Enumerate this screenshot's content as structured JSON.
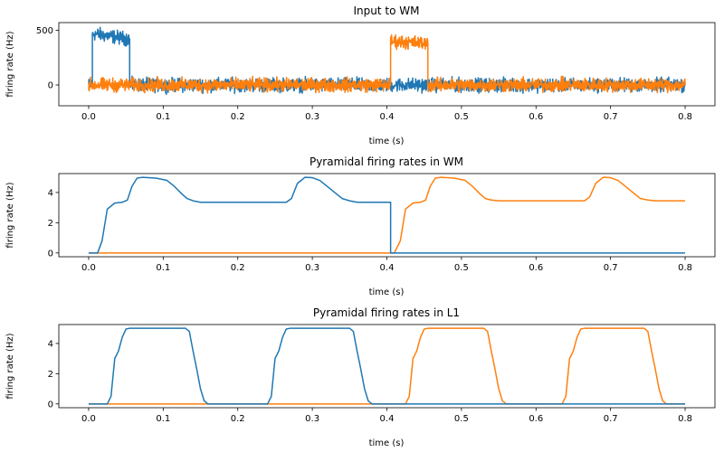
{
  "colors": {
    "series_1": "#1f77b4",
    "series_2": "#ff7f0e"
  },
  "chart_data": [
    {
      "type": "line",
      "title": "Input to WM",
      "xlabel": "time (s)",
      "ylabel": "firing rate (Hz)",
      "xlim": [
        -0.04,
        0.84
      ],
      "ylim": [
        -190,
        570
      ],
      "xticks": [
        0.0,
        0.1,
        0.2,
        0.3,
        0.4,
        0.5,
        0.6,
        0.7,
        0.8
      ],
      "xtick_labels": [
        "0.0",
        "0.1",
        "0.2",
        "0.3",
        "0.4",
        "0.5",
        "0.6",
        "0.7",
        "0.8"
      ],
      "yticks": [
        0,
        500
      ],
      "ytick_labels": [
        "0",
        "500"
      ],
      "noise_amplitude": 50,
      "series": [
        {
          "color_key": "series_1",
          "z": 1,
          "x": [
            0.0,
            0.005,
            0.005,
            0.055,
            0.055,
            0.405,
            0.405,
            0.455,
            0.455,
            0.8
          ],
          "y": [
            0,
            0,
            470,
            420,
            0,
            0,
            0,
            0,
            0,
            0
          ]
        },
        {
          "color_key": "series_2",
          "z": 2,
          "x": [
            0.0,
            0.405,
            0.405,
            0.455,
            0.455,
            0.8
          ],
          "y": [
            0,
            0,
            400,
            380,
            0,
            0
          ]
        }
      ]
    },
    {
      "type": "line",
      "title": "Pyramidal firing rates in WM",
      "xlabel": "time (s)",
      "ylabel": "firing rate (Hz)",
      "xlim": [
        -0.04,
        0.84
      ],
      "ylim": [
        -0.25,
        5.25
      ],
      "xticks": [
        0.0,
        0.1,
        0.2,
        0.3,
        0.4,
        0.5,
        0.6,
        0.7,
        0.8
      ],
      "xtick_labels": [
        "0.0",
        "0.1",
        "0.2",
        "0.3",
        "0.4",
        "0.5",
        "0.6",
        "0.7",
        "0.8"
      ],
      "yticks": [
        0,
        2,
        4
      ],
      "ytick_labels": [
        "0",
        "2",
        "4"
      ],
      "series": [
        {
          "color_key": "series_1",
          "z": 2,
          "x": [
            0.0,
            0.012,
            0.018,
            0.025,
            0.035,
            0.045,
            0.052,
            0.058,
            0.065,
            0.072,
            0.09,
            0.105,
            0.115,
            0.125,
            0.132,
            0.14,
            0.15,
            0.2,
            0.265,
            0.272,
            0.28,
            0.29,
            0.3,
            0.31,
            0.32,
            0.33,
            0.34,
            0.35,
            0.36,
            0.405,
            0.405,
            0.8
          ],
          "y": [
            0,
            0,
            0.8,
            2.9,
            3.3,
            3.35,
            3.5,
            4.4,
            4.95,
            5.0,
            4.95,
            4.8,
            4.4,
            3.9,
            3.6,
            3.45,
            3.35,
            3.35,
            3.35,
            3.6,
            4.6,
            5.0,
            4.98,
            4.8,
            4.4,
            4.0,
            3.6,
            3.45,
            3.35,
            3.35,
            0,
            0
          ]
        },
        {
          "color_key": "series_2",
          "z": 1,
          "x": [
            0.0,
            0.41,
            0.418,
            0.425,
            0.435,
            0.445,
            0.452,
            0.458,
            0.465,
            0.472,
            0.49,
            0.505,
            0.515,
            0.525,
            0.532,
            0.54,
            0.55,
            0.6,
            0.665,
            0.672,
            0.68,
            0.69,
            0.7,
            0.71,
            0.72,
            0.73,
            0.74,
            0.75,
            0.76,
            0.8
          ],
          "y": [
            0,
            0,
            0.8,
            2.9,
            3.3,
            3.35,
            3.5,
            4.4,
            4.95,
            5.0,
            4.95,
            4.8,
            4.4,
            3.9,
            3.6,
            3.5,
            3.45,
            3.45,
            3.45,
            3.7,
            4.6,
            5.0,
            4.98,
            4.8,
            4.4,
            4.0,
            3.6,
            3.5,
            3.45,
            3.45
          ]
        }
      ]
    },
    {
      "type": "line",
      "title": "Pyramidal firing rates in L1",
      "xlabel": "time (s)",
      "ylabel": "firing rate (Hz)",
      "xlim": [
        -0.04,
        0.84
      ],
      "ylim": [
        -0.25,
        5.25
      ],
      "xticks": [
        0.0,
        0.1,
        0.2,
        0.3,
        0.4,
        0.5,
        0.6,
        0.7,
        0.8
      ],
      "xtick_labels": [
        "0.0",
        "0.1",
        "0.2",
        "0.3",
        "0.4",
        "0.5",
        "0.6",
        "0.7",
        "0.8"
      ],
      "yticks": [
        0,
        2,
        4
      ],
      "ytick_labels": [
        "0",
        "2",
        "4"
      ],
      "series": [
        {
          "color_key": "series_1",
          "z": 2,
          "x": [
            0.0,
            0.025,
            0.03,
            0.035,
            0.04,
            0.045,
            0.05,
            0.055,
            0.06,
            0.13,
            0.135,
            0.14,
            0.145,
            0.15,
            0.155,
            0.16,
            0.24,
            0.245,
            0.25,
            0.255,
            0.26,
            0.265,
            0.27,
            0.28,
            0.35,
            0.355,
            0.36,
            0.365,
            0.37,
            0.375,
            0.38,
            0.8
          ],
          "y": [
            0,
            0,
            0.5,
            3.0,
            3.5,
            4.4,
            4.95,
            5.0,
            5.0,
            5.0,
            4.8,
            3.5,
            2.3,
            1.0,
            0.2,
            0,
            0,
            0.5,
            3.0,
            3.5,
            4.4,
            4.95,
            5.0,
            5.0,
            5.0,
            4.8,
            3.5,
            2.3,
            1.0,
            0.2,
            0,
            0
          ]
        },
        {
          "color_key": "series_2",
          "z": 1,
          "x": [
            0.0,
            0.425,
            0.43,
            0.435,
            0.44,
            0.445,
            0.45,
            0.455,
            0.46,
            0.53,
            0.535,
            0.54,
            0.545,
            0.55,
            0.555,
            0.56,
            0.635,
            0.64,
            0.645,
            0.65,
            0.655,
            0.66,
            0.665,
            0.67,
            0.745,
            0.75,
            0.755,
            0.76,
            0.765,
            0.77,
            0.775,
            0.8
          ],
          "y": [
            0,
            0,
            0.5,
            3.0,
            3.5,
            4.4,
            4.95,
            5.0,
            5.0,
            5.0,
            4.8,
            3.5,
            2.3,
            1.0,
            0.2,
            0,
            0,
            0.5,
            3.0,
            3.5,
            4.4,
            4.95,
            5.0,
            5.0,
            5.0,
            4.8,
            3.5,
            2.3,
            1.0,
            0.2,
            0,
            0
          ]
        }
      ]
    }
  ]
}
